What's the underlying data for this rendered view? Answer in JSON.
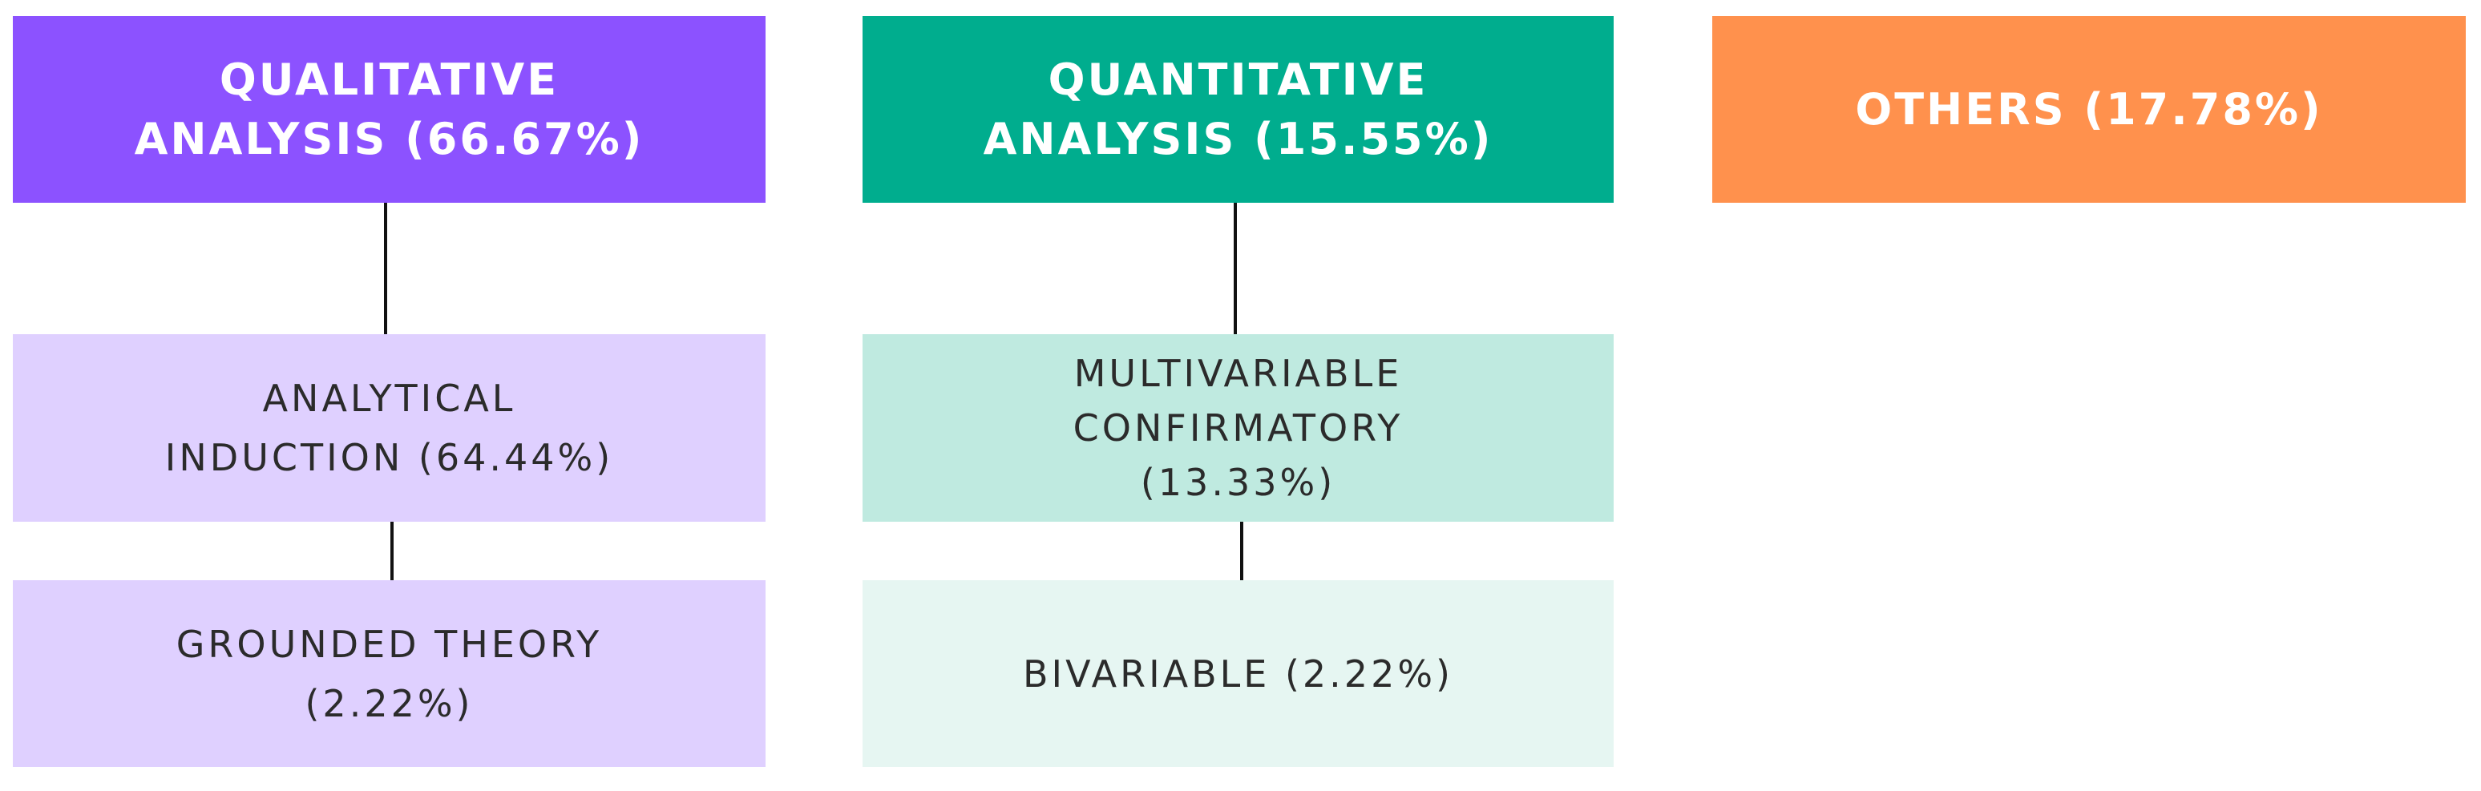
{
  "columns": [
    {
      "header": {
        "lines": [
          "QUALITATIVE",
          "ANALYSIS (66.67%)"
        ]
      },
      "children": [
        {
          "lines": [
            "ANALYTICAL",
            "INDUCTION (64.44%)"
          ]
        },
        {
          "lines": [
            "GROUNDED THEORY",
            "(2.22%)"
          ]
        }
      ]
    },
    {
      "header": {
        "lines": [
          "QUANTITATIVE",
          "ANALYSIS (15.55%)"
        ]
      },
      "children": [
        {
          "lines": [
            "MULTIVARIABLE",
            "CONFIRMATORY",
            "(13.33%)"
          ]
        },
        {
          "lines": [
            "BIVARIABLE (2.22%)"
          ]
        }
      ]
    },
    {
      "header": {
        "lines": [
          "OTHERS (17.78%)"
        ]
      },
      "children": []
    }
  ]
}
